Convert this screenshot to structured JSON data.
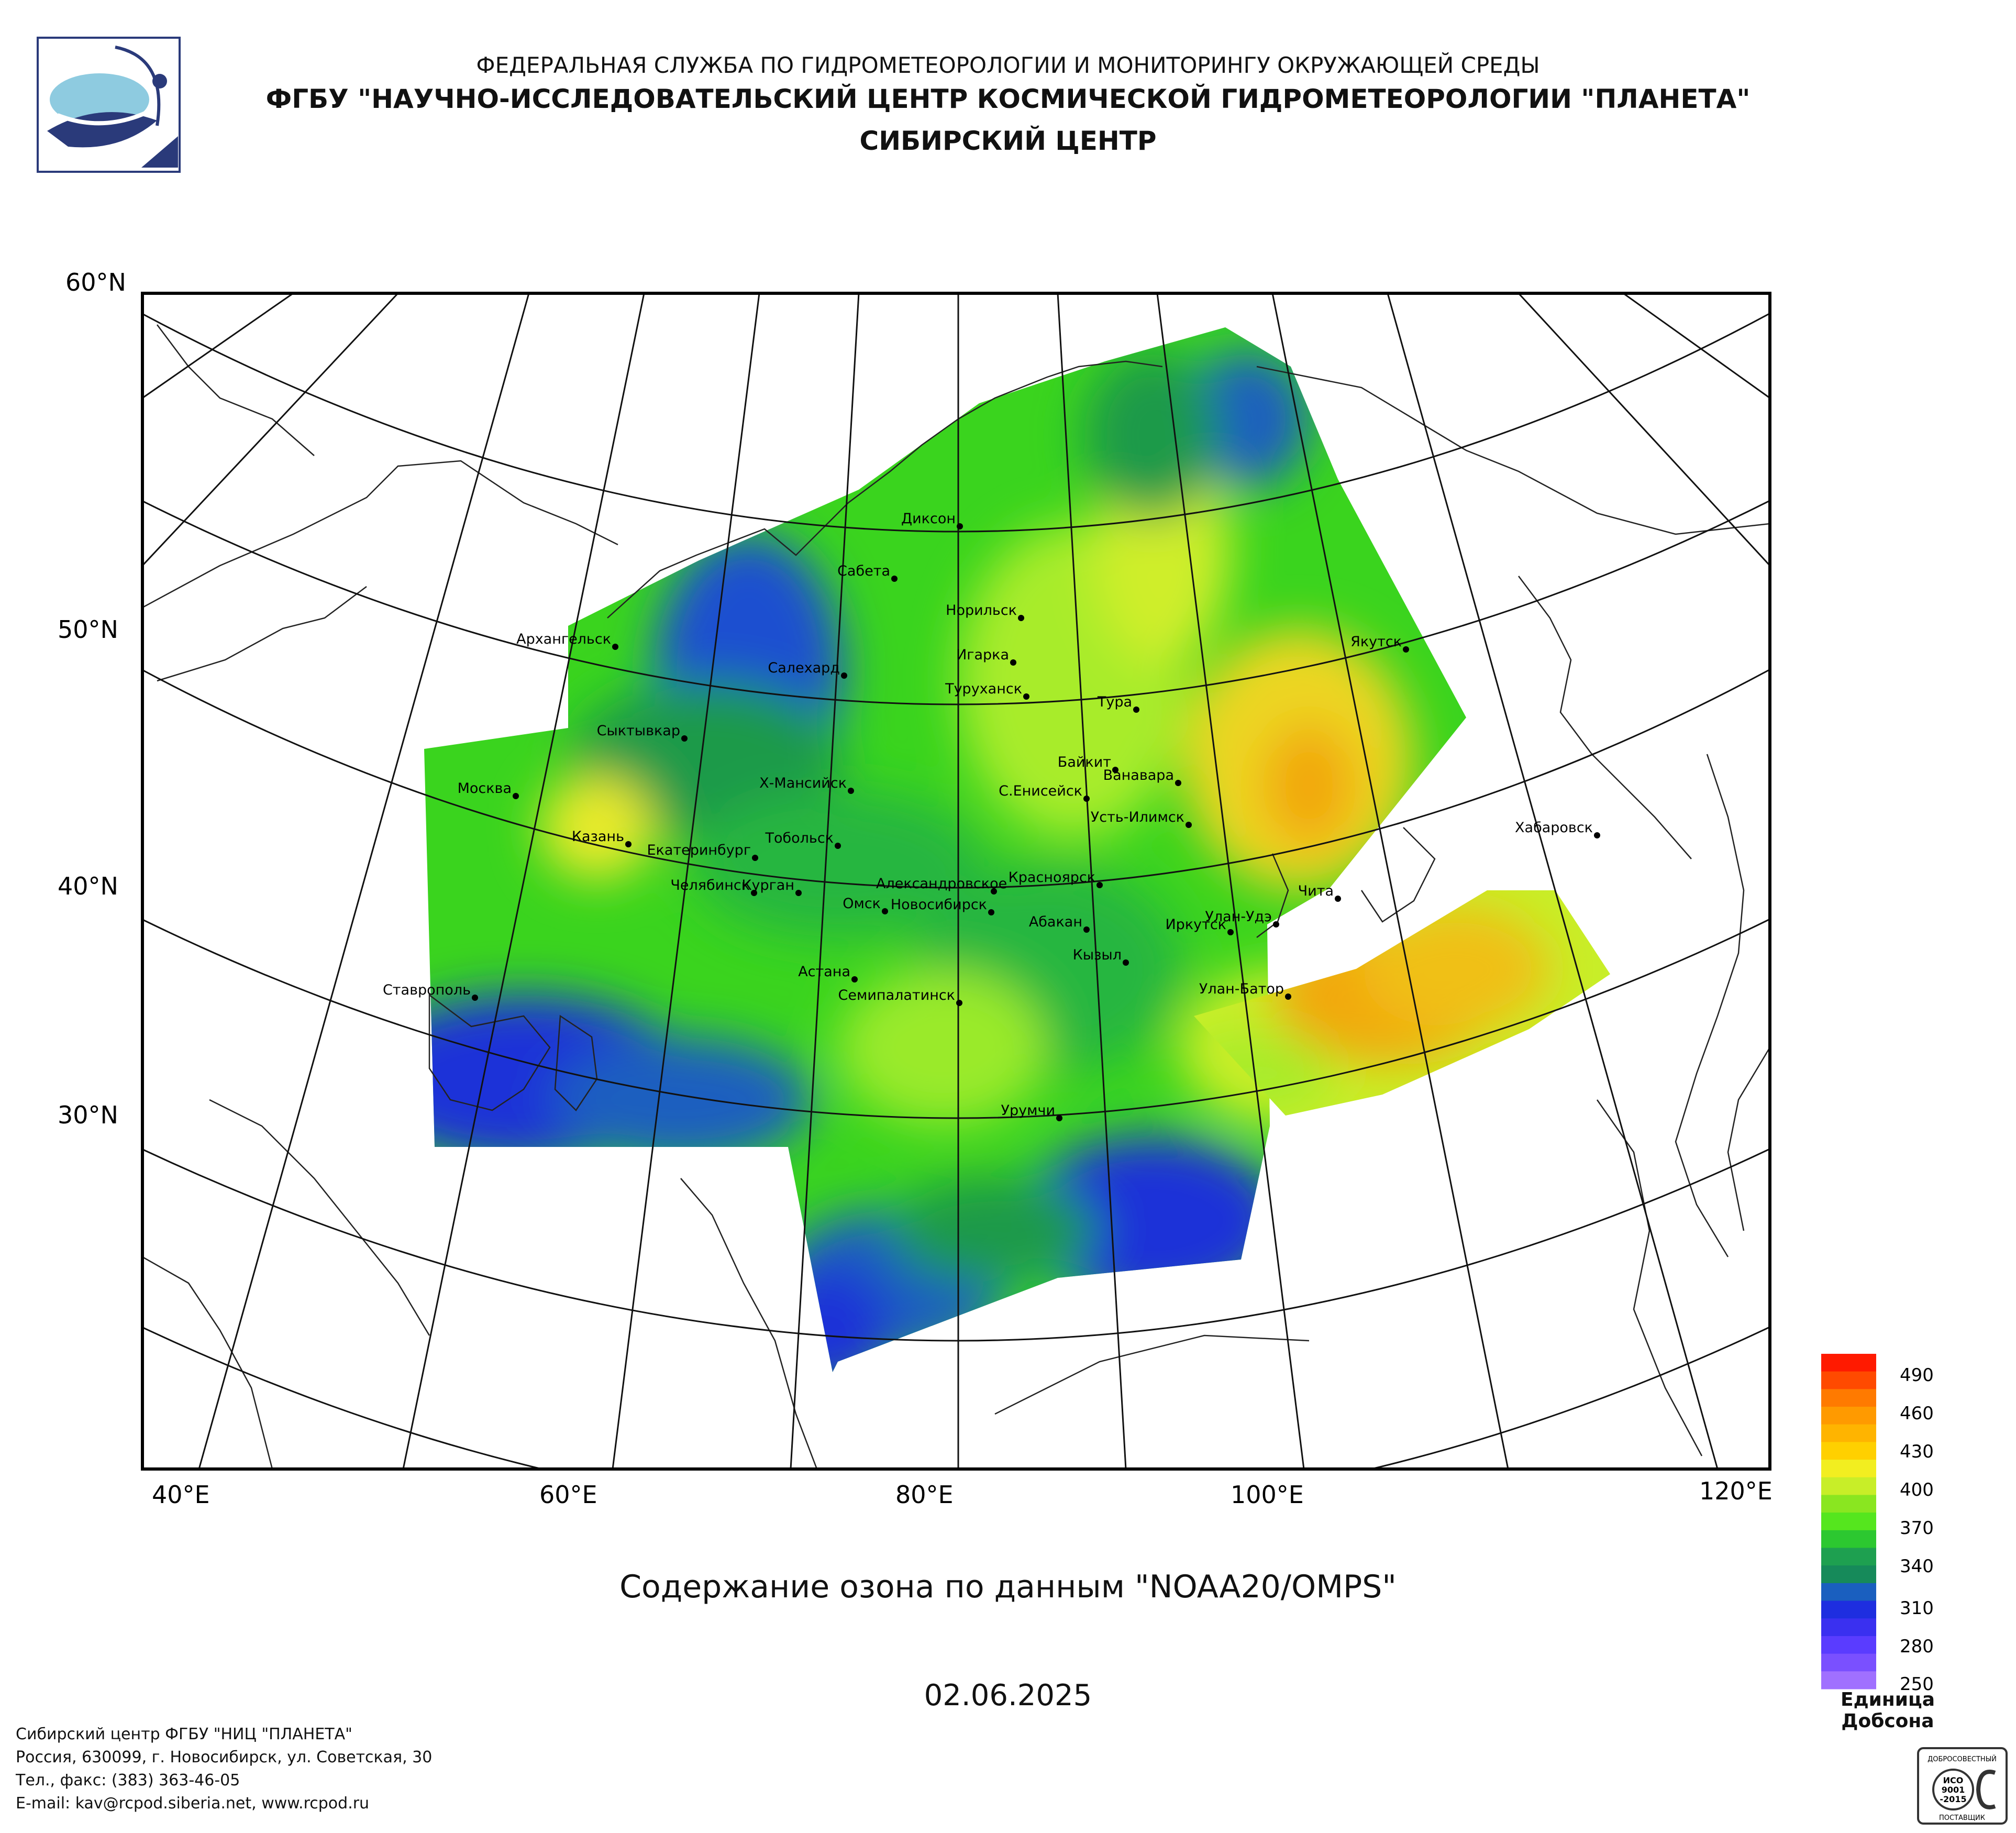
{
  "header": {
    "line1": "ФЕДЕРАЛЬНАЯ СЛУЖБА ПО ГИДРОМЕТЕОРОЛОГИИ И МОНИТОРИНГУ ОКРУЖАЮЩЕЙ СРЕДЫ",
    "line2": "ФГБУ \"НАУЧНО-ИССЛЕДОВАТЕЛЬСКИЙ ЦЕНТР КОСМИЧЕСКОЙ ГИДРОМЕТЕОРОЛОГИИ \"ПЛАНЕТА\"",
    "line3": "СИБИРСКИЙ ЦЕНТР"
  },
  "map": {
    "lat_labels": [
      "60°N",
      "50°N",
      "40°N",
      "30°N"
    ],
    "lon_labels": [
      "40°E",
      "60°E",
      "80°E",
      "100°E",
      "120°E"
    ],
    "cities": [
      "Диксон",
      "Сабета",
      "Норильск",
      "Игарка",
      "Салехард",
      "Туруханск",
      "Тура",
      "Архангельск",
      "Якутск",
      "Сыктывкар",
      "Байкит",
      "Ванавара",
      "Москва",
      "Х-Мансийск",
      "С.Енисейск",
      "Усть-Илимск",
      "Казань",
      "Тобольск",
      "Екатеринбург",
      "Хабаровск",
      "Красноярск",
      "Челябинск",
      "Александровское",
      "Курган",
      "Омск",
      "Новосибирск",
      "Чита",
      "Абакан",
      "Улан-Удэ",
      "Иркутск",
      "Кызыл",
      "Астана",
      "Ставрополь",
      "Семипалатинск",
      "Улан-Батор",
      "Урумчи"
    ]
  },
  "caption": "Содержание озона по данным \"NOAA20/OMPS\"",
  "date": "02.06.2025",
  "legend": {
    "labels": [
      "490",
      "460",
      "430",
      "400",
      "370",
      "340",
      "310",
      "280",
      "250"
    ],
    "unit": "Единица Добсона",
    "colors": {
      "250": "#a070ff",
      "280": "#5a3cff",
      "310": "#1e2ee0",
      "340": "#1ea050",
      "370": "#55e61e",
      "400": "#e8f020",
      "430": "#ffb400",
      "460": "#ff7a00",
      "490": "#ff1a00"
    }
  },
  "footer": {
    "line1": "Сибирский центр ФГБУ \"НИЦ \"ПЛАНЕТА\"",
    "line2": "Россия, 630099, г. Новосибирск, ул. Советская, 30",
    "line3": "Тел., факс: (383) 363-46-05",
    "line4": "E-mail: kav@rcpod.siberia.net, www.rcpod.ru"
  },
  "iso_badge": {
    "top": "ДОБРОСОВЕСТНЫЙ",
    "mid1": "ИСО",
    "mid2": "9001",
    "mid3": "-2015",
    "bottom": "ПОСТАВЩИК"
  }
}
